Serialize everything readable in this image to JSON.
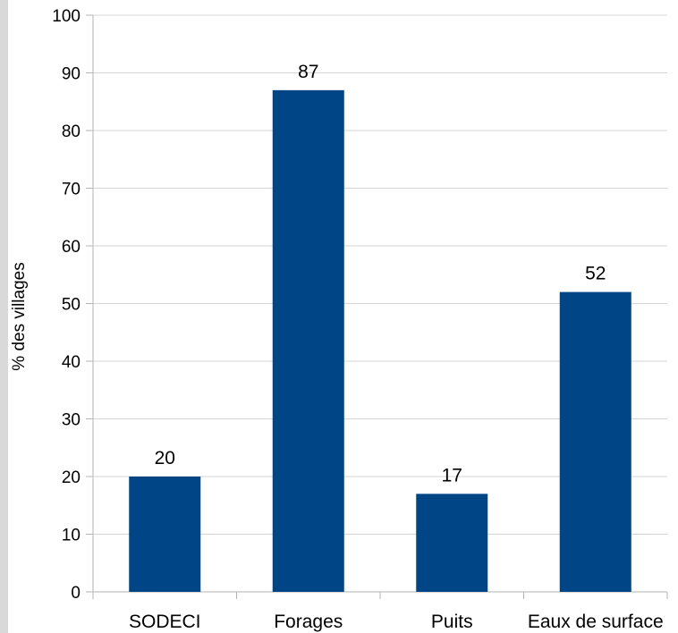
{
  "chart_data": {
    "type": "bar",
    "categories": [
      "SODECI",
      "Forages",
      "Puits",
      "Eaux de surface"
    ],
    "values": [
      20,
      87,
      17,
      52
    ],
    "data_labels": [
      "20",
      "87",
      "17",
      "52"
    ],
    "title": "",
    "xlabel": "",
    "ylabel": "% des villages",
    "ylim": [
      0,
      100
    ],
    "yticks": [
      "0",
      "10",
      "20",
      "30",
      "40",
      "50",
      "60",
      "70",
      "80",
      "90",
      "100"
    ],
    "grid": true,
    "legend": "none",
    "bar_color": "#004586",
    "grid_color": "#d4d4d4"
  }
}
